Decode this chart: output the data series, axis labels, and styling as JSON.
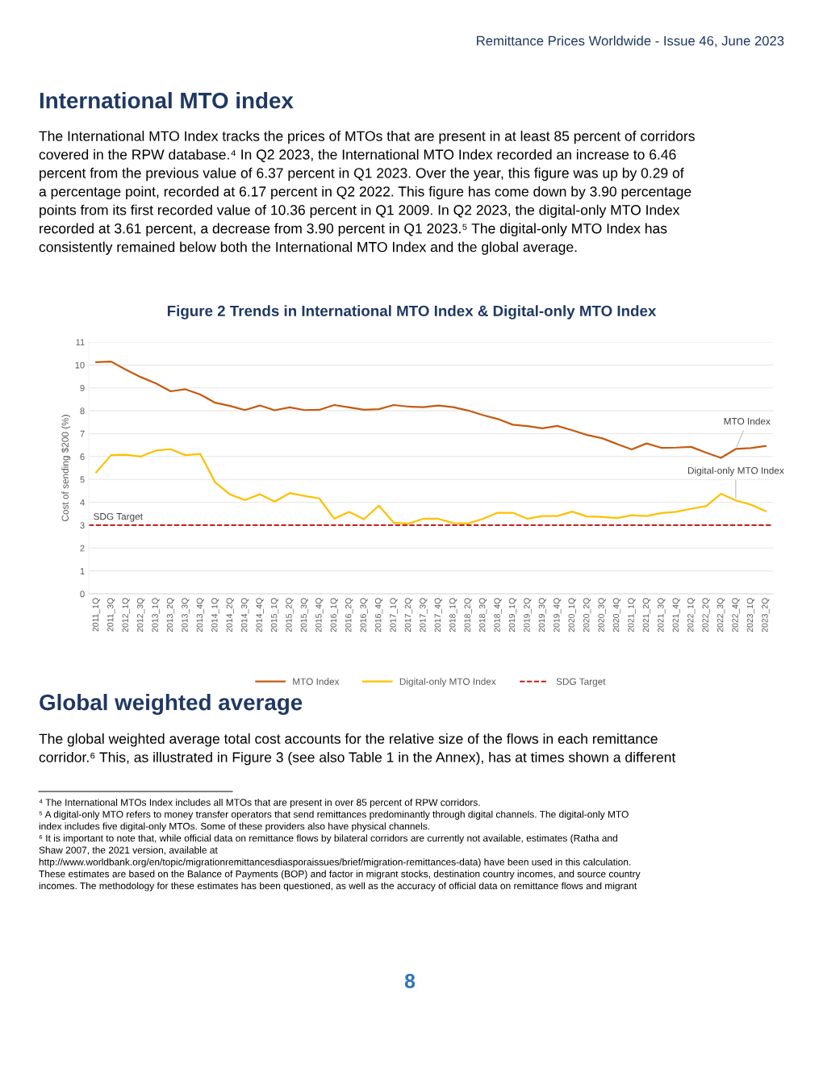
{
  "chart_data": {
    "type": "line",
    "title": "Figure 2 Trends in International MTO Index & Digital-only MTO Index",
    "ylabel": "Cost of sending $200 (%)",
    "categories": [
      "2011_1Q",
      "2011_3Q",
      "2012_1Q",
      "2012_3Q",
      "2013_1Q",
      "2013_2Q",
      "2013_3Q",
      "2013_4Q",
      "2014_1Q",
      "2014_2Q",
      "2014_3Q",
      "2014_4Q",
      "2015_1Q",
      "2015_2Q",
      "2015_3Q",
      "2015_4Q",
      "2016_1Q",
      "2016_2Q",
      "2016_3Q",
      "2016_4Q",
      "2017_1Q",
      "2017_2Q",
      "2017_3Q",
      "2017_4Q",
      "2018_1Q",
      "2018_2Q",
      "2018_3Q",
      "2018_4Q",
      "2019_1Q",
      "2019_2Q",
      "2019_3Q",
      "2019_4Q",
      "2020_1Q",
      "2020_2Q",
      "2020_3Q",
      "2020_4Q",
      "2021_1Q",
      "2021_2Q",
      "2021_3Q",
      "2021_4Q",
      "2022_1Q",
      "2022_2Q",
      "2022_3Q",
      "2022_4Q",
      "2023_1Q",
      "2023_2Q"
    ],
    "series": [
      {
        "name": "MTO Index",
        "color": "#c55a11",
        "values": [
          10.12,
          10.15,
          9.79,
          9.47,
          9.2,
          8.85,
          8.94,
          8.71,
          8.35,
          8.21,
          8.03,
          8.23,
          8.02,
          8.15,
          8.03,
          8.04,
          8.25,
          8.15,
          8.04,
          8.07,
          8.25,
          8.18,
          8.16,
          8.23,
          8.16,
          8.01,
          7.81,
          7.64,
          7.39,
          7.33,
          7.23,
          7.34,
          7.15,
          6.94,
          6.8,
          6.55,
          6.31,
          6.57,
          6.38,
          6.39,
          6.42,
          6.17,
          5.94,
          6.33,
          6.37,
          6.46
        ]
      },
      {
        "name": "Digital-only MTO Index",
        "color": "#ffc000",
        "values": [
          5.31,
          6.06,
          6.08,
          6.0,
          6.26,
          6.32,
          6.06,
          6.11,
          4.87,
          4.34,
          4.1,
          4.35,
          4.03,
          4.4,
          4.28,
          4.17,
          3.28,
          3.58,
          3.26,
          3.85,
          3.11,
          3.07,
          3.28,
          3.28,
          3.09,
          3.07,
          3.28,
          3.54,
          3.54,
          3.28,
          3.4,
          3.4,
          3.59,
          3.38,
          3.36,
          3.31,
          3.43,
          3.4,
          3.53,
          3.58,
          3.72,
          3.83,
          4.37,
          4.08,
          3.9,
          3.61
        ]
      }
    ],
    "ref_lines": [
      {
        "axis": "y",
        "value": 3,
        "label": "SDG Target",
        "color": "#c00000",
        "line_style": "dashed"
      }
    ],
    "ylim": [
      0,
      11
    ],
    "yticks": [
      0,
      1,
      2,
      3,
      4,
      5,
      6,
      7,
      8,
      9,
      10,
      11
    ],
    "grid": "y",
    "legend": "bottom",
    "marker": "none",
    "line_style": "solid",
    "annotations": [
      "Remittance Prices Worldwide - Issue 46, June 2023",
      "International MTO index",
      "The International MTO Index tracks the prices of MTOs that are present in at least 85 percent of corridors\ncovered in the RPW database.⁴ In Q2 2023, the International MTO Index recorded an increase to 6.46\npercent from the previous value of 6.37 percent in Q1 2023. Over the year, this figure was up by 0.29 of\na percentage point, recorded at 6.17 percent in Q2 2022. This figure has come down by 3.90 percentage\npoints from its first recorded value of 10.36 percent in Q1 2009. In Q2 2023, the digital-only MTO Index\nrecorded at 3.61 percent, a decrease from 3.90 percent in Q1 2023.⁵ The digital-only MTO Index has\nconsistently remained below both the International MTO Index and the global average.",
      "Global weighted average",
      "The global weighted average total cost accounts for the relative size of the flows in each remittance\ncorridor.⁶ This, as illustrated in Figure 3 (see also Table 1 in the Annex), has at times shown a different",
      "⁴ The International MTOs Index includes all MTOs that are present in over 85 percent of RPW corridors.\n⁵ A digital-only MTO refers to money transfer operators that send remittances predominantly through digital channels. The digital-only MTO\nindex includes five digital-only MTOs. Some of these providers also have physical channels.\n⁶ It is important to note that, while official data on remittance flows by bilateral corridors are currently not available, estimates (Ratha and\nShaw 2007, the 2021 version, available at\nhttp://www.worldbank.org/en/topic/migrationremittancesdiasporaissues/brief/migration-remittances-data) have been used in this calculation.\nThese estimates are based on the Balance of Payments (BOP) and factor in migrant stocks, destination country incomes, and source country\nincomes. The methodology for these estimates has been questioned, as well as the accuracy of official data on remittance flows and migrant",
      "8"
    ]
  }
}
